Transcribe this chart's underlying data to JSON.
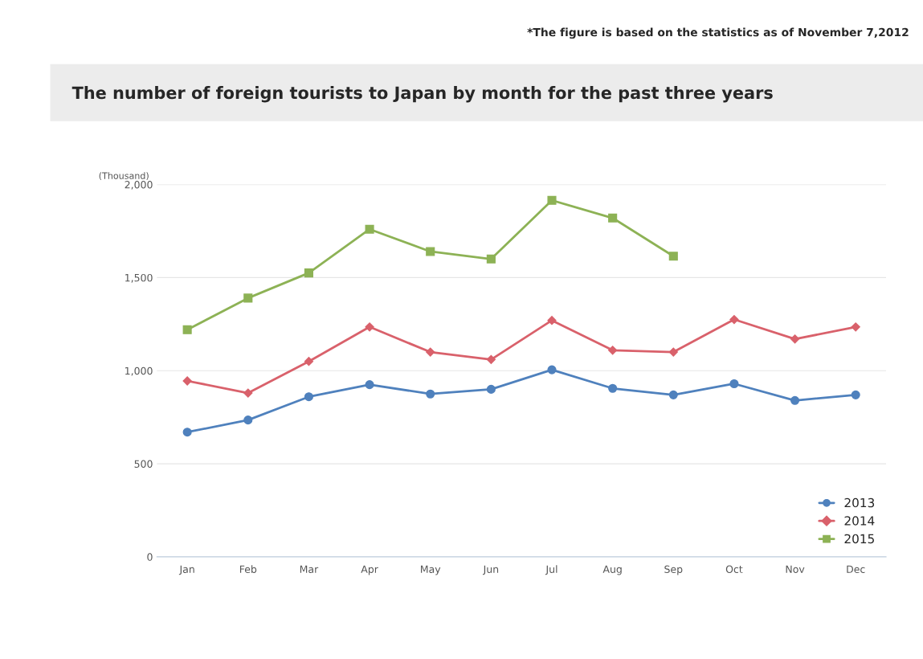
{
  "chart_data": {
    "type": "line",
    "title": "The number of foreign tourists to Japan by month for the past three years",
    "ylabel": "(Thousand)",
    "annotations": [
      "*The figure is based on the statistics as of November 7,2012"
    ],
    "categories": [
      "Jan",
      "Feb",
      "Mar",
      "Apr",
      "May",
      "Jun",
      "Jul",
      "Aug",
      "Sep",
      "Oct",
      "Nov",
      "Dec"
    ],
    "series": [
      {
        "name": "2013",
        "color": "#4f81bd",
        "marker": "circle",
        "values": [
          670,
          735,
          860,
          925,
          875,
          900,
          1005,
          905,
          870,
          930,
          840,
          870
        ]
      },
      {
        "name": "2014",
        "color": "#d9616b",
        "marker": "diamond",
        "values": [
          945,
          880,
          1050,
          1235,
          1100,
          1060,
          1270,
          1110,
          1100,
          1275,
          1170,
          1235
        ]
      },
      {
        "name": "2015",
        "color": "#8db255",
        "marker": "square",
        "values": [
          1220,
          1390,
          1525,
          1760,
          1640,
          1600,
          1915,
          1820,
          1615,
          null,
          null,
          null
        ]
      }
    ],
    "ylim": [
      0,
      2000
    ],
    "yticks": [
      0,
      {
        "value": 500,
        "label": "500"
      },
      {
        "value": 1000,
        "label": "1,000"
      },
      {
        "value": 1500,
        "label": "1,500"
      },
      {
        "value": 2000,
        "label": "2,000"
      }
    ],
    "grid": "y",
    "legend": "bottom right",
    "line_style": "solid"
  }
}
